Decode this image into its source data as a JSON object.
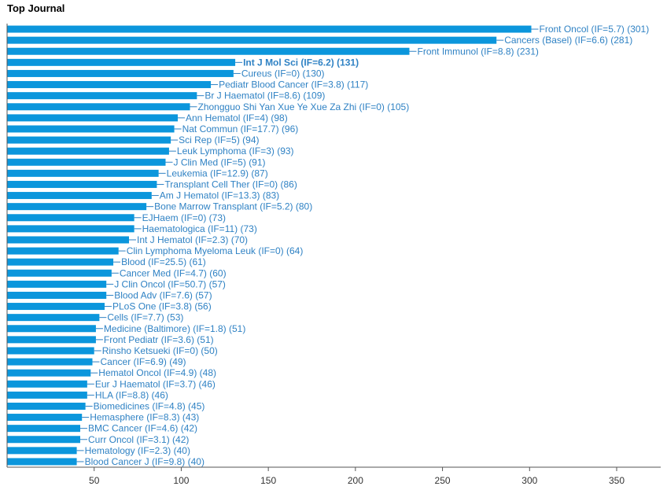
{
  "chart_data": {
    "type": "bar",
    "orientation": "horizontal",
    "title": "Top Journal",
    "xlabel": "",
    "ylabel": "",
    "xlim": [
      0,
      370
    ],
    "ticks": [
      50,
      100,
      150,
      200,
      250,
      300,
      350
    ],
    "bar_color": "#0b96dc",
    "label_color": "#2f82c4",
    "highlighted": "Int J Mol Sci (IF=6.2) (131)",
    "categories": [
      "Front Oncol (IF=5.7) (301)",
      "Cancers (Basel) (IF=6.6) (281)",
      "Front Immunol (IF=8.8) (231)",
      "Int J Mol Sci (IF=6.2) (131)",
      "Cureus (IF=0) (130)",
      "Pediatr Blood Cancer (IF=3.8) (117)",
      "Br J Haematol (IF=8.6) (109)",
      "Zhongguo Shi Yan Xue Ye Xue Za Zhi (IF=0) (105)",
      "Ann Hematol (IF=4) (98)",
      "Nat Commun (IF=17.7) (96)",
      "Sci Rep (IF=5) (94)",
      "Leuk Lymphoma (IF=3) (93)",
      "J Clin Med (IF=5) (91)",
      "Leukemia (IF=12.9) (87)",
      "Transplant Cell Ther (IF=0) (86)",
      "Am J Hematol (IF=13.3) (83)",
      "Bone Marrow Transplant (IF=5.2) (80)",
      "EJHaem (IF=0) (73)",
      "Haematologica (IF=11) (73)",
      "Int J Hematol (IF=2.3) (70)",
      "Clin Lymphoma Myeloma Leuk (IF=0) (64)",
      "Blood (IF=25.5) (61)",
      "Cancer Med (IF=4.7) (60)",
      "J Clin Oncol (IF=50.7) (57)",
      "Blood Adv (IF=7.6) (57)",
      "PLoS One (IF=3.8) (56)",
      "Cells (IF=7.7) (53)",
      "Medicine (Baltimore) (IF=1.8) (51)",
      "Front Pediatr (IF=3.6) (51)",
      "Rinsho Ketsueki (IF=0) (50)",
      "Cancer (IF=6.9) (49)",
      "Hematol Oncol (IF=4.9) (48)",
      "Eur J Haematol (IF=3.7) (46)",
      "HLA (IF=8.8) (46)",
      "Biomedicines (IF=4.8) (45)",
      "Hemasphere (IF=8.3) (43)",
      "BMC Cancer (IF=4.6) (42)",
      "Curr Oncol (IF=3.1) (42)",
      "Hematology (IF=2.3) (40)",
      "Blood Cancer J (IF=9.8) (40)"
    ],
    "values": [
      301,
      281,
      231,
      131,
      130,
      117,
      109,
      105,
      98,
      96,
      94,
      93,
      91,
      87,
      86,
      83,
      80,
      73,
      73,
      70,
      64,
      61,
      60,
      57,
      57,
      56,
      53,
      51,
      51,
      50,
      49,
      48,
      46,
      46,
      45,
      43,
      42,
      42,
      40,
      40
    ]
  }
}
